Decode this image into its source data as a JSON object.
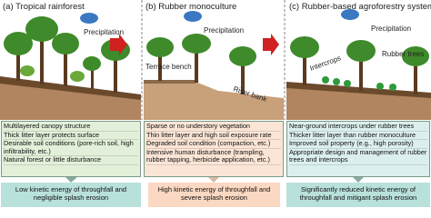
{
  "panels": [
    {
      "title": "(a) Tropical rainforest",
      "labels": [
        "Precipitation"
      ],
      "features": [
        "Multilayered canopy structure",
        "Thick litter layer protects surface",
        "Desirable soil conditions (pore-rich soil, high infiltrability, etc.)",
        "Natural forest or little disturbance"
      ],
      "outcome": "Low kinetic energy of throughfall and negligible splash erosion"
    },
    {
      "title": "(b) Rubber monoculture",
      "labels": [
        "Precipitation",
        "Terrace bench",
        "Riser bank"
      ],
      "features": [
        "Sparse or no understory vegetation",
        "Thin litter layer and high soil exposure rate",
        "Degraded soil condition (compaction, etc.)",
        "Intensive human disturbance (trampling, rubber tapping, herbicide application, etc.)"
      ],
      "outcome": "High kinetic energy of throughfall and severe splash erosion"
    },
    {
      "title": "(c) Rubber-based agroforestry system",
      "labels": [
        "Precipitation",
        "Rubber trees",
        "Intercrops"
      ],
      "features": [
        "Near-ground intercrops under rubber trees",
        "Thicker litter layer than rubber monoculture",
        "Improved soil property (e.g., high porosity)",
        "Appropriate design and management of rubber trees and intercrops"
      ],
      "outcome": "Significantly reduced kinetic energy of throughfall and mitigant splash erosion"
    }
  ]
}
